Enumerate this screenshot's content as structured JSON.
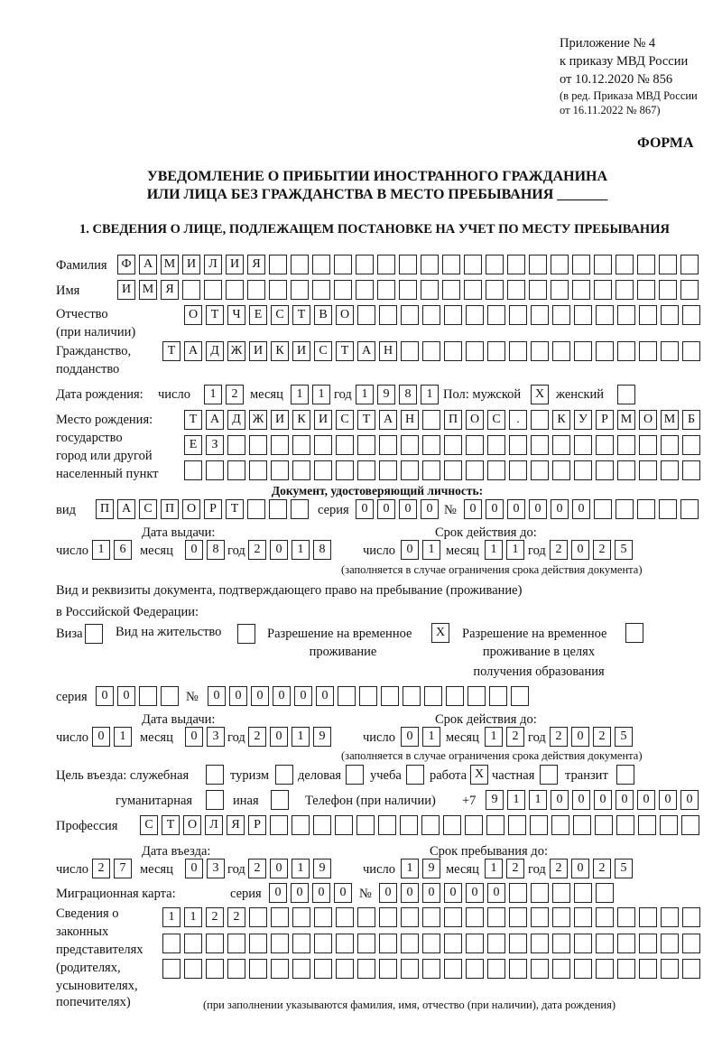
{
  "header": {
    "appendix": "Приложение № 4",
    "order": "к приказу МВД России",
    "order_date": "от 10.12.2020 № 856",
    "edition1": "(в ред. Приказа МВД России",
    "edition2": "от 16.11.2022 № 867)",
    "form_label": "ФОРМА",
    "title_line1": "УВЕДОМЛЕНИЕ О ПРИБЫТИИ ИНОСТРАННОГО ГРАЖДАНИНА",
    "title_line2": "ИЛИ ЛИЦА БЕЗ ГРАЖДАНСТВА В МЕСТО ПРЕБЫВАНИЯ _______",
    "section1": "1. СВЕДЕНИЯ О ЛИЦЕ, ПОДЛЕЖАЩЕМ ПОСТАНОВКЕ НА УЧЕТ ПО МЕСТУ ПРЕБЫВАНИЯ"
  },
  "labels": {
    "surname": "Фамилия",
    "name": "Имя",
    "patronymic": "Отчество",
    "patronymic_note": "(при наличии)",
    "citizenship1": "Гражданство,",
    "citizenship2": "подданство",
    "birth_date": "Дата рождения:",
    "day": "число",
    "month": "месяц",
    "year": "год",
    "sex": "Пол: мужской",
    "female": "женский",
    "birthplace1": "Место рождения:",
    "birthplace2": "государство",
    "birthplace3": "город или другой",
    "birthplace4": "населенный пункт",
    "id_doc": "Документ, удостоверяющий личность:",
    "kind": "вид",
    "series": "серия",
    "number": "№",
    "issue_date": "Дата выдачи:",
    "valid_until": "Срок действия до:",
    "validity_note": "(заполняется в случае ограничения срока действия документа)",
    "stay_doc1": "Вид и реквизиты документа, подтверждающего право на пребывание (проживание)",
    "stay_doc2": "в Российской Федерации:",
    "visa": "Виза",
    "residence_permit": "Вид на жительство",
    "temp_permit1": "Разрешение на временное",
    "temp_permit2": "проживание",
    "edu_permit1": "Разрешение на временное",
    "edu_permit2": "проживание в целях",
    "edu_permit3": "получения образования",
    "purpose": "Цель въезда: служебная",
    "tourism": "туризм",
    "business": "деловая",
    "study": "учеба",
    "work": "работа",
    "private": "частная",
    "transit": "транзит",
    "humanitarian": "гуманитарная",
    "other": "иная",
    "phone": "Телефон (при наличии)",
    "phone_prefix": "+7",
    "profession": "Профессия",
    "entry_date": "Дата въезда:",
    "stay_until": "Срок пребывания до:",
    "migration_card": "Миграционная карта:",
    "reps1": "Сведения о",
    "reps2": "законных",
    "reps3": "представителях",
    "reps4": "(родителях,",
    "reps5": "усыновителях,",
    "reps6": "попечителях)",
    "reps_note": "(при заполнении указываются фамилия, имя, отчество (при наличии), дата рождения)"
  },
  "values": {
    "surname": "ФАМИЛИЯ",
    "name": "ИМЯ",
    "patronymic": "ОТЧЕСТВО",
    "citizenship": "ТАДЖИКИСТАН",
    "birth_day": "12",
    "birth_month": "11",
    "birth_year": "1981",
    "male": "X",
    "female": "",
    "birthplace_line1": "ТАДЖИКИСТАН ПОС. КУРМОМБ",
    "birthplace_line2": "ЕЗ",
    "birthplace_line3": "",
    "doc_kind": "ПАСПОРТ",
    "doc_series": "0000",
    "doc_number": "000000",
    "doc_issue_day": "16",
    "doc_issue_month": "08",
    "doc_issue_year": "2018",
    "doc_valid_day": "01",
    "doc_valid_month": "11",
    "doc_valid_year": "2025",
    "visa": "",
    "residence_permit": "",
    "temp_permit": "X",
    "edu_permit": "",
    "permit_series": "00",
    "permit_number": "000000",
    "permit_issue_day": "01",
    "permit_issue_month": "03",
    "permit_issue_year": "2019",
    "permit_valid_day": "01",
    "permit_valid_month": "12",
    "permit_valid_year": "2025",
    "purpose_service": "",
    "purpose_tourism": "",
    "purpose_business": "",
    "purpose_study": "",
    "purpose_work": "X",
    "purpose_private": "",
    "purpose_transit": "",
    "purpose_humanitarian": "",
    "purpose_other": "",
    "phone": "9110000000",
    "profession": "СТОЛЯР",
    "entry_day": "27",
    "entry_month": "03",
    "entry_year": "2019",
    "stay_day": "19",
    "stay_month": "12",
    "stay_year": "2025",
    "mig_series": "0000",
    "mig_number": "000000",
    "reps_line1": "1122",
    "reps_line2": "",
    "reps_line3": ""
  }
}
